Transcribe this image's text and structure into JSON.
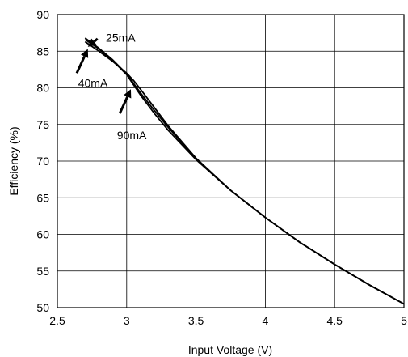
{
  "chart_data": {
    "type": "line",
    "title": "",
    "xlabel": "Input Voltage (V)",
    "ylabel": "Efficiency (%)",
    "xlim": [
      2.5,
      5
    ],
    "ylim": [
      50,
      90
    ],
    "xticks": [
      "2.5",
      "3",
      "3.5",
      "4",
      "4.5",
      "5"
    ],
    "yticks": [
      "50",
      "55",
      "60",
      "65",
      "70",
      "75",
      "80",
      "85",
      "90"
    ],
    "grid": true,
    "legend": "none",
    "series": [
      {
        "name": "25mA",
        "x": [
          2.7,
          2.8,
          2.9,
          3.0,
          3.05,
          3.1,
          3.2,
          3.3,
          3.5,
          3.75,
          4.0,
          4.25,
          4.5,
          4.75,
          5.0
        ],
        "y": [
          86.3,
          85.0,
          83.6,
          82.0,
          81.0,
          79.8,
          77.3,
          74.8,
          70.4,
          66.0,
          62.3,
          58.9,
          55.9,
          53.1,
          50.5
        ]
      },
      {
        "name": "40mA",
        "x": [
          2.7,
          2.8,
          2.9,
          3.0,
          3.05,
          3.1,
          3.2,
          3.3,
          3.5,
          3.75,
          4.0,
          4.25,
          4.5,
          4.75,
          5.0
        ],
        "y": [
          86.8,
          85.4,
          83.8,
          81.9,
          80.6,
          79.3,
          76.9,
          74.6,
          70.3,
          66.0,
          62.3,
          58.9,
          55.9,
          53.1,
          50.5
        ]
      },
      {
        "name": "90mA",
        "x": [
          2.7,
          2.8,
          2.9,
          3.0,
          3.05,
          3.1,
          3.2,
          3.3,
          3.5,
          3.75,
          4.0,
          4.25,
          4.5,
          4.75,
          5.0
        ],
        "y": [
          86.6,
          85.3,
          83.7,
          81.8,
          80.4,
          79.0,
          76.5,
          74.2,
          70.2,
          66.0,
          62.3,
          58.9,
          55.9,
          53.1,
          50.5
        ]
      }
    ],
    "annotations": [
      {
        "text": "25mA",
        "series": "25mA",
        "text_x": 2.85,
        "text_y": 86.3,
        "arrow_from": [
          2.79,
          86.7
        ],
        "arrow_to": [
          2.72,
          85.6
        ]
      },
      {
        "text": "40mA",
        "series": "40mA",
        "text_x": 2.65,
        "text_y": 80.1,
        "arrow_from": [
          2.64,
          82.0
        ],
        "arrow_to": [
          2.72,
          85.3
        ]
      },
      {
        "text": "90mA",
        "series": "90mA",
        "text_x": 2.93,
        "text_y": 73.0,
        "arrow_from": [
          2.95,
          76.5
        ],
        "arrow_to": [
          3.03,
          79.8
        ]
      }
    ],
    "colors": {
      "line": "#000000",
      "grid": "#000000",
      "background": "#ffffff"
    }
  }
}
